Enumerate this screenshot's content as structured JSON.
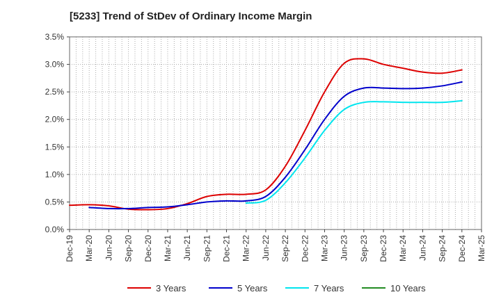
{
  "chart_data": {
    "type": "line",
    "title": "[5233]  Trend of StDev of Ordinary Income Margin",
    "xlabel": "",
    "ylabel": "",
    "x": [
      "Dec-19",
      "Mar-20",
      "Jun-20",
      "Sep-20",
      "Dec-20",
      "Mar-21",
      "Jun-21",
      "Sep-21",
      "Dec-21",
      "Mar-22",
      "Jun-22",
      "Sep-22",
      "Dec-22",
      "Mar-23",
      "Jun-23",
      "Sep-23",
      "Dec-23",
      "Mar-24",
      "Jun-24",
      "Sep-24",
      "Dec-24",
      "Mar-25"
    ],
    "y_ticks": [
      "0.0%",
      "0.5%",
      "1.0%",
      "1.5%",
      "2.0%",
      "2.5%",
      "3.0%",
      "3.5%"
    ],
    "ylim": [
      0,
      3.5
    ],
    "y_unit": "%",
    "grid": true,
    "legend_position": "bottom",
    "series": [
      {
        "name": "3 Years",
        "color": "#dd0000",
        "values": [
          0.44,
          0.45,
          0.43,
          0.37,
          0.36,
          0.38,
          0.47,
          0.6,
          0.64,
          0.64,
          0.72,
          1.15,
          1.8,
          2.5,
          3.02,
          3.1,
          3.0,
          2.93,
          2.86,
          2.84,
          2.9,
          null
        ]
      },
      {
        "name": "5 Years",
        "color": "#0000cc",
        "values": [
          null,
          0.4,
          0.38,
          0.38,
          0.4,
          0.41,
          0.45,
          0.5,
          0.52,
          0.52,
          0.6,
          0.95,
          1.45,
          2.0,
          2.42,
          2.57,
          2.57,
          2.56,
          2.57,
          2.61,
          2.68,
          null
        ]
      },
      {
        "name": "7 Years",
        "color": "#00e5ee",
        "values": [
          null,
          null,
          null,
          null,
          null,
          null,
          null,
          null,
          null,
          0.48,
          0.53,
          0.85,
          1.3,
          1.8,
          2.18,
          2.31,
          2.32,
          2.31,
          2.31,
          2.31,
          2.34,
          null
        ]
      },
      {
        "name": "10 Years",
        "color": "#228b22",
        "values": [
          null,
          null,
          null,
          null,
          null,
          null,
          null,
          null,
          null,
          null,
          null,
          null,
          null,
          null,
          null,
          null,
          null,
          null,
          null,
          null,
          null,
          null
        ]
      }
    ]
  }
}
